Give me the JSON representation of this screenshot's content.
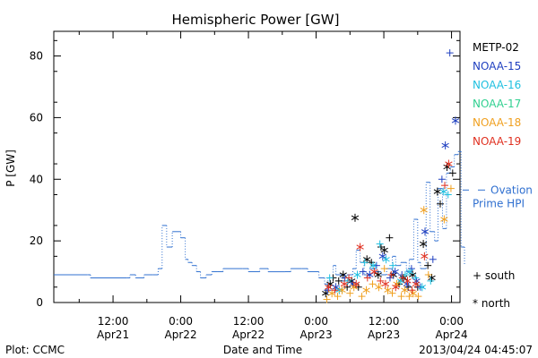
{
  "chart_data": {
    "type": "scatter",
    "title": "Hemispheric Power [GW]",
    "xlabel": "Date and Time",
    "ylabel": "P [GW]",
    "xlim_hours": [
      0,
      72
    ],
    "ylim": [
      0,
      88
    ],
    "yticks": [
      0,
      20,
      40,
      60,
      80
    ],
    "xticks": [
      {
        "h": 10.5,
        "line1": "12:00",
        "line2": "Apr21"
      },
      {
        "h": 22.5,
        "line1": "0:00",
        "line2": "Apr22"
      },
      {
        "h": 34.5,
        "line1": "12:00",
        "line2": "Apr22"
      },
      {
        "h": 46.5,
        "line1": "0:00",
        "line2": "Apr23"
      },
      {
        "h": 58.5,
        "line1": "12:00",
        "line2": "Apr23"
      },
      {
        "h": 70.5,
        "line1": "0:00",
        "line2": "Apr24"
      }
    ],
    "ovation_series": {
      "name": "Ovation Prime HPI",
      "color": "#3070d0",
      "points": [
        [
          0,
          9
        ],
        [
          6,
          9
        ],
        [
          6.5,
          8
        ],
        [
          13,
          8
        ],
        [
          13.5,
          9
        ],
        [
          14.5,
          8
        ],
        [
          16,
          9
        ],
        [
          17.5,
          9
        ],
        [
          18.5,
          11
        ],
        [
          19.2,
          25
        ],
        [
          20,
          18
        ],
        [
          21,
          23
        ],
        [
          22.5,
          21
        ],
        [
          23.3,
          14
        ],
        [
          23.8,
          13
        ],
        [
          24.5,
          12
        ],
        [
          25.3,
          10
        ],
        [
          26,
          8
        ],
        [
          27,
          9
        ],
        [
          28,
          10
        ],
        [
          29,
          10
        ],
        [
          30,
          11
        ],
        [
          33.5,
          11
        ],
        [
          34.5,
          10
        ],
        [
          36.5,
          11
        ],
        [
          38,
          10
        ],
        [
          41,
          10
        ],
        [
          42,
          11
        ],
        [
          44,
          11
        ],
        [
          45,
          10
        ],
        [
          47,
          8
        ],
        [
          48,
          6
        ],
        [
          48.6,
          8
        ],
        [
          49.5,
          12
        ],
        [
          50,
          9
        ],
        [
          51,
          7
        ],
        [
          52,
          9
        ],
        [
          53,
          11
        ],
        [
          53.6,
          17
        ],
        [
          54.3,
          13
        ],
        [
          55,
          9
        ],
        [
          56,
          11
        ],
        [
          57,
          10
        ],
        [
          58,
          9
        ],
        [
          59,
          11
        ],
        [
          60,
          15
        ],
        [
          60.6,
          12
        ],
        [
          61.5,
          13
        ],
        [
          62.5,
          10
        ],
        [
          63,
          14
        ],
        [
          63.8,
          27
        ],
        [
          64.5,
          13
        ],
        [
          65,
          11
        ],
        [
          66,
          39
        ],
        [
          66.7,
          23
        ],
        [
          67.5,
          20
        ],
        [
          68.1,
          37
        ],
        [
          68.9,
          24
        ],
        [
          69.6,
          42
        ],
        [
          70.3,
          44
        ],
        [
          71,
          48
        ],
        [
          71.7,
          49
        ],
        [
          72.2,
          18
        ],
        [
          72.8,
          12
        ]
      ]
    },
    "satellite_series": [
      {
        "name": "METP-02",
        "color": "#000000",
        "points": [
          [
            48.2,
            3,
            "n"
          ],
          [
            49,
            6,
            "n"
          ],
          [
            49.5,
            8,
            "s"
          ],
          [
            50.5,
            7,
            "s"
          ],
          [
            51.3,
            9,
            "n"
          ],
          [
            52,
            5,
            "s"
          ],
          [
            52.8,
            7,
            "n"
          ],
          [
            53.4,
            27.5,
            "n"
          ],
          [
            54,
            5,
            "s"
          ],
          [
            55.5,
            14,
            "n"
          ],
          [
            56.3,
            13,
            "s"
          ],
          [
            57.5,
            9,
            "n"
          ],
          [
            58,
            18,
            "s"
          ],
          [
            58.6,
            17,
            "n"
          ],
          [
            59.5,
            21,
            "s"
          ],
          [
            60.2,
            9,
            "n"
          ],
          [
            61.2,
            6,
            "s"
          ],
          [
            62,
            8,
            "n"
          ],
          [
            62.8,
            5,
            "s"
          ],
          [
            63.6,
            9,
            "n"
          ],
          [
            64.5,
            5,
            "s"
          ],
          [
            65.5,
            19,
            "n"
          ],
          [
            66.3,
            12,
            "s"
          ],
          [
            67,
            8,
            "n"
          ],
          [
            68,
            36,
            "n"
          ],
          [
            68.5,
            32,
            "s"
          ],
          [
            69.7,
            44,
            "n"
          ],
          [
            70.7,
            42,
            "s"
          ]
        ]
      },
      {
        "name": "NOAA-15",
        "color": "#2040c0",
        "points": [
          [
            48.5,
            4,
            "s"
          ],
          [
            50,
            5,
            "n"
          ],
          [
            51.6,
            8,
            "s"
          ],
          [
            53,
            6,
            "n"
          ],
          [
            54.8,
            10,
            "s"
          ],
          [
            56,
            9,
            "n"
          ],
          [
            57.2,
            12,
            "s"
          ],
          [
            58.3,
            15,
            "n"
          ],
          [
            59.6,
            8,
            "s"
          ],
          [
            60.5,
            10,
            "n"
          ],
          [
            61.7,
            9,
            "s"
          ],
          [
            62.6,
            6,
            "n"
          ],
          [
            63.4,
            11,
            "s"
          ],
          [
            64.3,
            7,
            "n"
          ],
          [
            65,
            5,
            "s"
          ],
          [
            65.8,
            23,
            "n"
          ],
          [
            67.2,
            14,
            "s"
          ],
          [
            68.8,
            40,
            "s"
          ],
          [
            69.4,
            51,
            "n"
          ],
          [
            70.2,
            81,
            "s"
          ],
          [
            71.2,
            59,
            "n"
          ]
        ]
      },
      {
        "name": "NOAA-16",
        "color": "#20c0e0",
        "points": [
          [
            48.9,
            8,
            "s"
          ],
          [
            50.6,
            4,
            "n"
          ],
          [
            52.1,
            7,
            "s"
          ],
          [
            53.8,
            9,
            "n"
          ],
          [
            55.1,
            13,
            "s"
          ],
          [
            56.6,
            12,
            "n"
          ],
          [
            57.8,
            19,
            "s"
          ],
          [
            58.9,
            14,
            "n"
          ],
          [
            60.1,
            12,
            "s"
          ],
          [
            61.5,
            7,
            "n"
          ],
          [
            62.3,
            9,
            "s"
          ],
          [
            63.1,
            10,
            "n"
          ],
          [
            64.1,
            8,
            "s"
          ],
          [
            65.3,
            5,
            "n"
          ],
          [
            66.8,
            7,
            "s"
          ],
          [
            69.1,
            36,
            "n"
          ],
          [
            69.9,
            35,
            "s"
          ]
        ]
      },
      {
        "name": "NOAA-17",
        "color": "#30d090",
        "points": []
      },
      {
        "name": "NOAA-18",
        "color": "#f0a020",
        "points": [
          [
            48.4,
            1,
            "s"
          ],
          [
            49.3,
            3,
            "n"
          ],
          [
            50.3,
            2,
            "s"
          ],
          [
            51.1,
            4,
            "n"
          ],
          [
            52.5,
            3,
            "s"
          ],
          [
            53.2,
            5,
            "n"
          ],
          [
            54.6,
            2,
            "s"
          ],
          [
            55.4,
            4,
            "n"
          ],
          [
            56.5,
            6,
            "s"
          ],
          [
            57.6,
            5,
            "n"
          ],
          [
            58.6,
            11,
            "s"
          ],
          [
            59.2,
            4,
            "n"
          ],
          [
            60,
            3,
            "s"
          ],
          [
            60.8,
            6,
            "n"
          ],
          [
            61.6,
            2,
            "s"
          ],
          [
            62.2,
            4,
            "n"
          ],
          [
            63,
            2,
            "s"
          ],
          [
            63.7,
            3,
            "n"
          ],
          [
            64.6,
            2,
            "s"
          ],
          [
            65.6,
            30,
            "n"
          ],
          [
            66.4,
            9,
            "s"
          ],
          [
            69.2,
            27,
            "n"
          ],
          [
            70.4,
            37,
            "s"
          ]
        ]
      },
      {
        "name": "NOAA-19",
        "color": "#e03020",
        "points": [
          [
            48.7,
            5,
            "n"
          ],
          [
            49.8,
            4,
            "s"
          ],
          [
            51.5,
            6,
            "n"
          ],
          [
            52.3,
            8,
            "s"
          ],
          [
            53.6,
            6,
            "n"
          ],
          [
            54.3,
            18,
            "n"
          ],
          [
            55.6,
            8,
            "s"
          ],
          [
            56.8,
            10,
            "n"
          ],
          [
            57.9,
            7,
            "s"
          ],
          [
            58.8,
            6,
            "n"
          ],
          [
            59.8,
            9,
            "s"
          ],
          [
            60.6,
            5,
            "n"
          ],
          [
            61.8,
            8,
            "s"
          ],
          [
            62.7,
            7,
            "n"
          ],
          [
            63.5,
            4,
            "s"
          ],
          [
            64.2,
            6,
            "n"
          ],
          [
            65.7,
            15,
            "n"
          ],
          [
            69.3,
            38,
            "s"
          ],
          [
            70,
            45,
            "n"
          ]
        ]
      }
    ],
    "symbol_legend": {
      "plus": "+ south",
      "star": "* north"
    }
  },
  "footer": {
    "left": "Plot: CCMC",
    "center": "Date and Time",
    "right": "2013/04/24 04:45:07"
  }
}
